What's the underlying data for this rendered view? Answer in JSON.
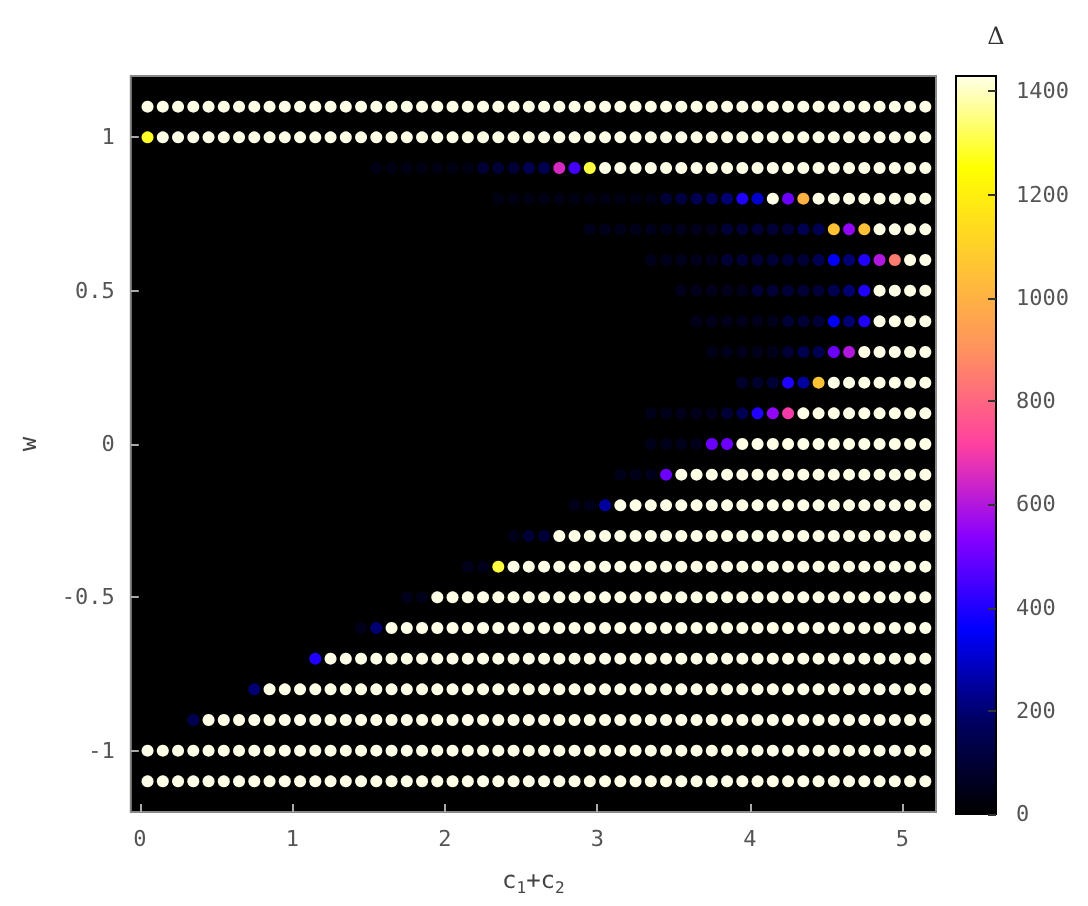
{
  "chart_data": {
    "type": "scatter",
    "xlabel": "c$_{1}$+c$_{2}$",
    "ylabel": "w",
    "clabel": "Δ",
    "xlim": [
      -0.06,
      5.22
    ],
    "ylim": [
      -1.2,
      1.2
    ],
    "xticks": [
      0,
      1,
      2,
      3,
      4,
      5
    ],
    "yticks": [
      -1,
      -0.5,
      0,
      0.5,
      1
    ],
    "clim": [
      0,
      1430
    ],
    "cticks": [
      0,
      200,
      400,
      600,
      800,
      1000,
      1200,
      1400
    ],
    "marker": "circle",
    "grid": false,
    "x": [
      0.05,
      0.15,
      0.25,
      0.35,
      0.45,
      0.55,
      0.65,
      0.75,
      0.85,
      0.95,
      1.05,
      1.15,
      1.25,
      1.35,
      1.45,
      1.55,
      1.65,
      1.75,
      1.85,
      1.95,
      2.05,
      2.15,
      2.25,
      2.35,
      2.45,
      2.55,
      2.65,
      2.75,
      2.85,
      2.95,
      3.05,
      3.15,
      3.25,
      3.35,
      3.45,
      3.55,
      3.65,
      3.75,
      3.85,
      3.95,
      4.05,
      4.15,
      4.25,
      4.35,
      4.45,
      4.55,
      4.65,
      4.75,
      4.85,
      4.95,
      5.05,
      5.15,
      0.05,
      0.15,
      0.25,
      0.35,
      0.45,
      0.55,
      0.65,
      0.75,
      0.85,
      0.95,
      1.05,
      1.15,
      1.25,
      1.35,
      1.45,
      1.55,
      1.65,
      1.75,
      1.85,
      1.95,
      2.05,
      2.15,
      2.25,
      2.35,
      2.45,
      2.55,
      2.65,
      2.75,
      2.85,
      2.95,
      3.05,
      3.15,
      3.25,
      3.35,
      3.45,
      3.55,
      3.65,
      3.75,
      3.85,
      3.95,
      4.05,
      4.15,
      4.25,
      4.35,
      4.45,
      4.55,
      4.65,
      4.75,
      4.85,
      4.95,
      5.05,
      5.15,
      1.55,
      1.65,
      1.75,
      1.85,
      1.95,
      2.05,
      2.15,
      2.25,
      2.35,
      2.45,
      2.55,
      2.65,
      2.75,
      2.85,
      2.95,
      3.05,
      3.15,
      3.25,
      3.35,
      3.45,
      3.55,
      3.65,
      3.75,
      3.85,
      3.95,
      4.05,
      4.15,
      4.25,
      4.35,
      4.45,
      4.55,
      4.65,
      4.75,
      4.85,
      4.95,
      5.05,
      5.15,
      2.35,
      2.45,
      2.55,
      2.65,
      2.75,
      2.85,
      2.95,
      3.05,
      3.15,
      3.25,
      3.35,
      3.45,
      3.55,
      3.65,
      3.75,
      3.85,
      3.95,
      4.05,
      4.15,
      4.25,
      4.35,
      4.45,
      4.55,
      4.65,
      4.75,
      4.85,
      4.95,
      5.05,
      5.15,
      2.95,
      3.05,
      3.15,
      3.25,
      3.35,
      3.45,
      3.55,
      3.65,
      3.75,
      3.85,
      3.95,
      4.05,
      4.15,
      4.25,
      4.35,
      4.45,
      4.55,
      4.65,
      4.75,
      4.85,
      4.95,
      5.05,
      5.15,
      3.35,
      3.45,
      3.55,
      3.65,
      3.75,
      3.85,
      3.95,
      4.05,
      4.15,
      4.25,
      4.35,
      4.45,
      4.55,
      4.65,
      4.75,
      4.85,
      4.95,
      5.05,
      5.15,
      3.55,
      3.65,
      3.75,
      3.85,
      3.95,
      4.05,
      4.15,
      4.25,
      4.35,
      4.45,
      4.55,
      4.65,
      4.75,
      4.85,
      4.95,
      5.05,
      5.15,
      3.65,
      3.75,
      3.85,
      3.95,
      4.05,
      4.15,
      4.25,
      4.35,
      4.45,
      4.55,
      4.65,
      4.75,
      4.85,
      4.95,
      5.05,
      5.15,
      3.75,
      3.85,
      3.95,
      4.05,
      4.15,
      4.25,
      4.35,
      4.45,
      4.55,
      4.65,
      4.75,
      4.85,
      4.95,
      5.05,
      5.15,
      3.95,
      4.05,
      4.15,
      4.25,
      4.35,
      4.45,
      4.55,
      4.65,
      4.75,
      4.85,
      4.95,
      5.05,
      5.15,
      3.35,
      3.45,
      3.55,
      3.65,
      3.75,
      3.85,
      3.95,
      4.05,
      4.15,
      4.25,
      4.35,
      4.45,
      4.55,
      4.65,
      4.75,
      4.85,
      4.95,
      5.05,
      5.15,
      3.35,
      3.45,
      3.55,
      3.65,
      3.75,
      3.85,
      3.95,
      4.05,
      4.15,
      4.25,
      4.35,
      4.45,
      4.55,
      4.65,
      4.75,
      4.85,
      4.95,
      5.05,
      5.15,
      3.15,
      3.25,
      3.35,
      3.45,
      3.55,
      3.65,
      3.75,
      3.85,
      3.95,
      4.05,
      4.15,
      4.25,
      4.35,
      4.45,
      4.55,
      4.65,
      4.75,
      4.85,
      4.95,
      5.05,
      5.15,
      2.85,
      2.95,
      3.05,
      3.15,
      3.25,
      3.35,
      3.45,
      3.55,
      3.65,
      3.75,
      3.85,
      3.95,
      4.05,
      4.15,
      4.25,
      4.35,
      4.45,
      4.55,
      4.65,
      4.75,
      4.85,
      4.95,
      5.05,
      5.15,
      2.45,
      2.55,
      2.65,
      2.75,
      2.85,
      2.95,
      3.05,
      3.15,
      3.25,
      3.35,
      3.45,
      3.55,
      3.65,
      3.75,
      3.85,
      3.95,
      4.05,
      4.15,
      4.25,
      4.35,
      4.45,
      4.55,
      4.65,
      4.75,
      4.85,
      4.95,
      5.05,
      5.15,
      2.15,
      2.25,
      2.35,
      2.45,
      2.55,
      2.65,
      2.75,
      2.85,
      2.95,
      3.05,
      3.15,
      3.25,
      3.35,
      3.45,
      3.55,
      3.65,
      3.75,
      3.85,
      3.95,
      4.05,
      4.15,
      4.25,
      4.35,
      4.45,
      4.55,
      4.65,
      4.75,
      4.85,
      4.95,
      5.05,
      5.15,
      1.75,
      1.85,
      1.95,
      2.05,
      2.15,
      2.25,
      2.35,
      2.45,
      2.55,
      2.65,
      2.75,
      2.85,
      2.95,
      3.05,
      3.15,
      3.25,
      3.35,
      3.45,
      3.55,
      3.65,
      3.75,
      3.85,
      3.95,
      4.05,
      4.15,
      4.25,
      4.35,
      4.45,
      4.55,
      4.65,
      4.75,
      4.85,
      4.95,
      5.05,
      5.15,
      1.45,
      1.55,
      1.65,
      1.75,
      1.85,
      1.95,
      2.05,
      2.15,
      2.25,
      2.35,
      2.45,
      2.55,
      2.65,
      2.75,
      2.85,
      2.95,
      3.05,
      3.15,
      3.25,
      3.35,
      3.45,
      3.55,
      3.65,
      3.75,
      3.85,
      3.95,
      4.05,
      4.15,
      4.25,
      4.35,
      4.45,
      4.55,
      4.65,
      4.75,
      4.85,
      4.95,
      5.05,
      5.15,
      1.15,
      1.25,
      1.35,
      1.45,
      1.55,
      1.65,
      1.75,
      1.85,
      1.95,
      2.05,
      2.15,
      2.25,
      2.35,
      2.45,
      2.55,
      2.65,
      2.75,
      2.85,
      2.95,
      3.05,
      3.15,
      3.25,
      3.35,
      3.45,
      3.55,
      3.65,
      3.75,
      3.85,
      3.95,
      4.05,
      4.15,
      4.25,
      4.35,
      4.45,
      4.55,
      4.65,
      4.75,
      4.85,
      4.95,
      5.05,
      5.15,
      0.75,
      0.85,
      0.95,
      1.05,
      1.15,
      1.25,
      1.35,
      1.45,
      1.55,
      1.65,
      1.75,
      1.85,
      1.95,
      2.05,
      2.15,
      2.25,
      2.35,
      2.45,
      2.55,
      2.65,
      2.75,
      2.85,
      2.95,
      3.05,
      3.15,
      3.25,
      3.35,
      3.45,
      3.55,
      3.65,
      3.75,
      3.85,
      3.95,
      4.05,
      4.15,
      4.25,
      4.35,
      4.45,
      4.55,
      4.65,
      4.75,
      4.85,
      4.95,
      5.05,
      5.15,
      0.35,
      0.45,
      0.55,
      0.65,
      0.75,
      0.85,
      0.95,
      1.05,
      1.15,
      1.25,
      1.35,
      1.45,
      1.55,
      1.65,
      1.75,
      1.85,
      1.95,
      2.05,
      2.15,
      2.25,
      2.35,
      2.45,
      2.55,
      2.65,
      2.75,
      2.85,
      2.95,
      3.05,
      3.15,
      3.25,
      3.35,
      3.45,
      3.55,
      3.65,
      3.75,
      3.85,
      3.95,
      4.05,
      4.15,
      4.25,
      4.35,
      4.45,
      4.55,
      4.65,
      4.75,
      4.85,
      4.95,
      5.05,
      5.15,
      0.05,
      0.15,
      0.25,
      0.35,
      0.45,
      0.55,
      0.65,
      0.75,
      0.85,
      0.95,
      1.05,
      1.15,
      1.25,
      1.35,
      1.45,
      1.55,
      1.65,
      1.75,
      1.85,
      1.95,
      2.05,
      2.15,
      2.25,
      2.35,
      2.45,
      2.55,
      2.65,
      2.75,
      2.85,
      2.95,
      3.05,
      3.15,
      3.25,
      3.35,
      3.45,
      3.55,
      3.65,
      3.75,
      3.85,
      3.95,
      4.05,
      4.15,
      4.25,
      4.35,
      4.45,
      4.55,
      4.65,
      4.75,
      4.85,
      4.95,
      5.05,
      5.15,
      0.05,
      0.15,
      0.25,
      0.35,
      0.45,
      0.55,
      0.65,
      0.75,
      0.85,
      0.95,
      1.05,
      1.15,
      1.25,
      1.35,
      1.45,
      1.55,
      1.65,
      1.75,
      1.85,
      1.95,
      2.05,
      2.15,
      2.25,
      2.35,
      2.45,
      2.55,
      2.65,
      2.75,
      2.85,
      2.95,
      3.05,
      3.15,
      3.25,
      3.35,
      3.45,
      3.55,
      3.65,
      3.75,
      3.85,
      3.95,
      4.05,
      4.15,
      4.25,
      4.35,
      4.45,
      4.55,
      4.65,
      4.75,
      4.85,
      4.95,
      5.05,
      5.15
    ],
    "values": [
      1.1,
      1.1,
      1.1,
      1.1,
      1.1,
      1.1,
      1.1,
      1.1,
      1.1,
      1.1,
      1.1,
      1.1,
      1.1,
      1.1,
      1.1,
      1.1,
      1.1,
      1.1,
      1.1,
      1.1,
      1.1,
      1.1,
      1.1,
      1.1,
      1.1,
      1.1,
      1.1,
      1.1,
      1.1,
      1.1,
      1.1,
      1.1,
      1.1,
      1.1,
      1.1,
      1.1,
      1.1,
      1.1,
      1.1,
      1.1,
      1.1,
      1.1,
      1.1,
      1.1,
      1.1,
      1.1,
      1.1,
      1.1,
      1.1,
      1.1,
      1.1,
      1.1,
      1,
      1,
      1,
      1,
      1,
      1,
      1,
      1,
      1,
      1,
      1,
      1,
      1,
      1,
      1,
      1,
      1,
      1,
      1,
      1,
      1,
      1,
      1,
      1,
      1,
      1,
      1,
      1,
      1,
      1,
      1,
      1,
      1,
      1,
      1,
      1,
      1,
      1,
      1,
      1,
      1,
      1,
      1,
      1,
      1,
      1,
      1,
      1,
      1,
      1,
      1,
      1,
      0.9,
      0.9,
      0.9,
      0.9,
      0.9,
      0.9,
      0.9,
      0.9,
      0.9,
      0.9,
      0.9,
      0.9,
      0.9,
      0.9,
      0.9,
      0.9,
      0.9,
      0.9,
      0.9,
      0.9,
      0.9,
      0.9,
      0.9,
      0.9,
      0.9,
      0.9,
      0.9,
      0.9,
      0.9,
      0.9,
      0.9,
      0.9,
      0.9,
      0.9,
      0.9,
      0.9,
      0.9,
      0.8,
      0.8,
      0.8,
      0.8,
      0.8,
      0.8,
      0.8,
      0.8,
      0.8,
      0.8,
      0.8,
      0.8,
      0.8,
      0.8,
      0.8,
      0.8,
      0.8,
      0.8,
      0.8,
      0.8,
      0.8,
      0.8,
      0.8,
      0.8,
      0.8,
      0.8,
      0.8,
      0.8,
      0.8,
      0.7,
      0.7,
      0.7,
      0.7,
      0.7,
      0.7,
      0.7,
      0.7,
      0.7,
      0.7,
      0.7,
      0.7,
      0.7,
      0.7,
      0.7,
      0.7,
      0.7,
      0.7,
      0.7,
      0.7,
      0.7,
      0.7,
      0.7,
      0.6,
      0.6,
      0.6,
      0.6,
      0.6,
      0.6,
      0.6,
      0.6,
      0.6,
      0.6,
      0.6,
      0.6,
      0.6,
      0.6,
      0.6,
      0.6,
      0.6,
      0.6,
      0.6,
      0.5,
      0.5,
      0.5,
      0.5,
      0.5,
      0.5,
      0.5,
      0.5,
      0.5,
      0.5,
      0.5,
      0.5,
      0.5,
      0.5,
      0.5,
      0.5,
      0.5,
      0.4,
      0.4,
      0.4,
      0.4,
      0.4,
      0.4,
      0.4,
      0.4,
      0.4,
      0.4,
      0.4,
      0.4,
      0.4,
      0.4,
      0.4,
      0.4,
      0.3,
      0.3,
      0.3,
      0.3,
      0.3,
      0.3,
      0.3,
      0.3,
      0.3,
      0.3,
      0.3,
      0.3,
      0.3,
      0.3,
      0.3,
      0.2,
      0.2,
      0.2,
      0.2,
      0.2,
      0.2,
      0.2,
      0.2,
      0.2,
      0.2,
      0.2,
      0.2,
      0.2,
      0.1,
      0.1,
      0.1,
      0.1,
      0.1,
      0.1,
      0.1,
      0.1,
      0.1,
      0.1,
      0.1,
      0.1,
      0.1,
      0.1,
      0.1,
      0.1,
      0.1,
      0.1,
      0.1,
      0,
      0,
      0,
      0,
      0,
      0,
      0,
      0,
      0,
      0,
      0,
      0,
      0,
      0,
      0,
      0,
      0,
      0,
      0,
      -0.1,
      -0.1,
      -0.1,
      -0.1,
      -0.1,
      -0.1,
      -0.1,
      -0.1,
      -0.1,
      -0.1,
      -0.1,
      -0.1,
      -0.1,
      -0.1,
      -0.1,
      -0.1,
      -0.1,
      -0.1,
      -0.1,
      -0.1,
      -0.1,
      -0.2,
      -0.2,
      -0.2,
      -0.2,
      -0.2,
      -0.2,
      -0.2,
      -0.2,
      -0.2,
      -0.2,
      -0.2,
      -0.2,
      -0.2,
      -0.2,
      -0.2,
      -0.2,
      -0.2,
      -0.2,
      -0.2,
      -0.2,
      -0.2,
      -0.2,
      -0.2,
      -0.2,
      -0.3,
      -0.3,
      -0.3,
      -0.3,
      -0.3,
      -0.3,
      -0.3,
      -0.3,
      -0.3,
      -0.3,
      -0.3,
      -0.3,
      -0.3,
      -0.3,
      -0.3,
      -0.3,
      -0.3,
      -0.3,
      -0.3,
      -0.3,
      -0.3,
      -0.3,
      -0.3,
      -0.3,
      -0.3,
      -0.3,
      -0.3,
      -0.3,
      -0.4,
      -0.4,
      -0.4,
      -0.4,
      -0.4,
      -0.4,
      -0.4,
      -0.4,
      -0.4,
      -0.4,
      -0.4,
      -0.4,
      -0.4,
      -0.4,
      -0.4,
      -0.4,
      -0.4,
      -0.4,
      -0.4,
      -0.4,
      -0.4,
      -0.4,
      -0.4,
      -0.4,
      -0.4,
      -0.4,
      -0.4,
      -0.4,
      -0.4,
      -0.4,
      -0.4,
      -0.5,
      -0.5,
      -0.5,
      -0.5,
      -0.5,
      -0.5,
      -0.5,
      -0.5,
      -0.5,
      -0.5,
      -0.5,
      -0.5,
      -0.5,
      -0.5,
      -0.5,
      -0.5,
      -0.5,
      -0.5,
      -0.5,
      -0.5,
      -0.5,
      -0.5,
      -0.5,
      -0.5,
      -0.5,
      -0.5,
      -0.5,
      -0.5,
      -0.5,
      -0.5,
      -0.5,
      -0.5,
      -0.5,
      -0.5,
      -0.5,
      -0.6,
      -0.6,
      -0.6,
      -0.6,
      -0.6,
      -0.6,
      -0.6,
      -0.6,
      -0.6,
      -0.6,
      -0.6,
      -0.6,
      -0.6,
      -0.6,
      -0.6,
      -0.6,
      -0.6,
      -0.6,
      -0.6,
      -0.6,
      -0.6,
      -0.6,
      -0.6,
      -0.6,
      -0.6,
      -0.6,
      -0.6,
      -0.6,
      -0.6,
      -0.6,
      -0.6,
      -0.6,
      -0.6,
      -0.6,
      -0.6,
      -0.6,
      -0.6,
      -0.6,
      -0.7,
      -0.7,
      -0.7,
      -0.7,
      -0.7,
      -0.7,
      -0.7,
      -0.7,
      -0.7,
      -0.7,
      -0.7,
      -0.7,
      -0.7,
      -0.7,
      -0.7,
      -0.7,
      -0.7,
      -0.7,
      -0.7,
      -0.7,
      -0.7,
      -0.7,
      -0.7,
      -0.7,
      -0.7,
      -0.7,
      -0.7,
      -0.7,
      -0.7,
      -0.7,
      -0.7,
      -0.7,
      -0.7,
      -0.7,
      -0.7,
      -0.7,
      -0.7,
      -0.7,
      -0.7,
      -0.7,
      -0.7,
      -0.8,
      -0.8,
      -0.8,
      -0.8,
      -0.8,
      -0.8,
      -0.8,
      -0.8,
      -0.8,
      -0.8,
      -0.8,
      -0.8,
      -0.8,
      -0.8,
      -0.8,
      -0.8,
      -0.8,
      -0.8,
      -0.8,
      -0.8,
      -0.8,
      -0.8,
      -0.8,
      -0.8,
      -0.8,
      -0.8,
      -0.8,
      -0.8,
      -0.8,
      -0.8,
      -0.8,
      -0.8,
      -0.8,
      -0.8,
      -0.8,
      -0.8,
      -0.8,
      -0.8,
      -0.8,
      -0.8,
      -0.8,
      -0.8,
      -0.8,
      -0.8,
      -0.8,
      -0.9,
      -0.9,
      -0.9,
      -0.9,
      -0.9,
      -0.9,
      -0.9,
      -0.9,
      -0.9,
      -0.9,
      -0.9,
      -0.9,
      -0.9,
      -0.9,
      -0.9,
      -0.9,
      -0.9,
      -0.9,
      -0.9,
      -0.9,
      -0.9,
      -0.9,
      -0.9,
      -0.9,
      -0.9,
      -0.9,
      -0.9,
      -0.9,
      -0.9,
      -0.9,
      -0.9,
      -0.9,
      -0.9,
      -0.9,
      -0.9,
      -0.9,
      -0.9,
      -0.9,
      -0.9,
      -0.9,
      -0.9,
      -0.9,
      -0.9,
      -0.9,
      -0.9,
      -0.9,
      -0.9,
      -0.9,
      -0.9,
      -1,
      -1,
      -1,
      -1,
      -1,
      -1,
      -1,
      -1,
      -1,
      -1,
      -1,
      -1,
      -1,
      -1,
      -1,
      -1,
      -1,
      -1,
      -1,
      -1,
      -1,
      -1,
      -1,
      -1,
      -1,
      -1,
      -1,
      -1,
      -1,
      -1,
      -1,
      -1,
      -1,
      -1,
      -1,
      -1,
      -1,
      -1,
      -1,
      -1,
      -1,
      -1,
      -1,
      -1,
      -1,
      -1,
      -1,
      -1,
      -1,
      -1,
      -1,
      -1,
      -1.1,
      -1.1,
      -1.1,
      -1.1,
      -1.1,
      -1.1,
      -1.1,
      -1.1,
      -1.1,
      -1.1,
      -1.1,
      -1.1,
      -1.1,
      -1.1,
      -1.1,
      -1.1,
      -1.1,
      -1.1,
      -1.1,
      -1.1,
      -1.1,
      -1.1,
      -1.1,
      -1.1,
      -1.1,
      -1.1,
      -1.1,
      -1.1,
      -1.1,
      -1.1,
      -1.1,
      -1.1,
      -1.1,
      -1.1,
      -1.1,
      -1.1,
      -1.1,
      -1.1,
      -1.1,
      -1.1,
      -1.1,
      -1.1,
      -1.1,
      -1.1,
      -1.1,
      -1.1,
      -1.1,
      -1.1,
      -1.1,
      -1.1,
      -1.1,
      -1.1
    ],
    "cvalues": [
      1430,
      1430,
      1430,
      1430,
      1430,
      1430,
      1430,
      1430,
      1430,
      1430,
      1430,
      1430,
      1430,
      1430,
      1430,
      1430,
      1430,
      1430,
      1430,
      1430,
      1430,
      1430,
      1430,
      1430,
      1430,
      1430,
      1430,
      1430,
      1430,
      1430,
      1430,
      1430,
      1430,
      1430,
      1430,
      1430,
      1430,
      1430,
      1430,
      1430,
      1430,
      1430,
      1430,
      1430,
      1430,
      1430,
      1430,
      1430,
      1430,
      1430,
      1430,
      1430,
      1280,
      1430,
      1430,
      1430,
      1430,
      1430,
      1430,
      1430,
      1430,
      1430,
      1430,
      1430,
      1430,
      1430,
      1430,
      1430,
      1430,
      1430,
      1430,
      1430,
      1430,
      1430,
      1430,
      1430,
      1430,
      1430,
      1430,
      1430,
      1430,
      1430,
      1430,
      1430,
      1430,
      1430,
      1430,
      1430,
      1430,
      1430,
      1430,
      1430,
      1430,
      1430,
      1430,
      1430,
      1430,
      1430,
      1430,
      1430,
      1430,
      1430,
      1430,
      1430,
      40,
      40,
      40,
      40,
      40,
      40,
      40,
      100,
      100,
      100,
      150,
      150,
      650,
      450,
      1300,
      1430,
      1430,
      1430,
      1430,
      1430,
      1430,
      1430,
      1430,
      1430,
      1430,
      1430,
      1430,
      1430,
      1430,
      1430,
      1430,
      1430,
      1430,
      1430,
      1430,
      1430,
      1430,
      40,
      40,
      40,
      40,
      40,
      40,
      40,
      40,
      40,
      40,
      40,
      100,
      120,
      150,
      150,
      200,
      400,
      300,
      1430,
      500,
      1000,
      1430,
      1430,
      1430,
      1430,
      1430,
      1430,
      1430,
      1430,
      50,
      50,
      50,
      50,
      50,
      50,
      50,
      50,
      50,
      100,
      100,
      100,
      100,
      100,
      150,
      150,
      1050,
      550,
      1050,
      1430,
      1430,
      1430,
      1430,
      50,
      50,
      50,
      50,
      50,
      100,
      100,
      100,
      100,
      100,
      100,
      150,
      350,
      200,
      400,
      600,
      850,
      1430,
      1430,
      50,
      50,
      50,
      50,
      50,
      100,
      100,
      100,
      100,
      100,
      150,
      200,
      400,
      1430,
      1430,
      1430,
      1430,
      50,
      50,
      50,
      50,
      50,
      50,
      100,
      100,
      100,
      350,
      200,
      400,
      1430,
      1430,
      1430,
      1430,
      50,
      50,
      50,
      50,
      50,
      100,
      150,
      150,
      500,
      600,
      1430,
      1430,
      1430,
      1430,
      1430,
      80,
      80,
      100,
      400,
      250,
      1050,
      1430,
      1430,
      1430,
      1430,
      1430,
      1430,
      1430,
      50,
      50,
      50,
      50,
      50,
      100,
      150,
      400,
      550,
      700,
      1430,
      1430,
      1430,
      1430,
      1430,
      1430,
      1430,
      1430,
      1430,
      50,
      50,
      50,
      50,
      500,
      500,
      1430,
      1430,
      1430,
      1430,
      1430,
      1430,
      1430,
      1430,
      1430,
      1430,
      1430,
      1430,
      1430,
      50,
      50,
      50,
      500,
      1430,
      1430,
      1430,
      1430,
      1430,
      1430,
      1430,
      1430,
      1430,
      1430,
      1430,
      1430,
      1430,
      1430,
      1430,
      1430,
      1430,
      50,
      50,
      250,
      1430,
      1430,
      1430,
      1430,
      1430,
      1430,
      1430,
      1430,
      1430,
      1430,
      1430,
      1430,
      1430,
      1430,
      1430,
      1430,
      1430,
      1430,
      1430,
      1430,
      1430,
      50,
      100,
      100,
      1430,
      1430,
      1430,
      1430,
      1430,
      1430,
      1430,
      1430,
      1430,
      1430,
      1430,
      1430,
      1430,
      1430,
      1430,
      1430,
      1430,
      1430,
      1430,
      1430,
      1430,
      1430,
      1430,
      1430,
      1430,
      50,
      50,
      1300,
      1430,
      1430,
      1430,
      1430,
      1430,
      1430,
      1430,
      1430,
      1430,
      1430,
      1430,
      1430,
      1430,
      1430,
      1430,
      1430,
      1430,
      1430,
      1430,
      1430,
      1430,
      1430,
      1430,
      1430,
      1430,
      1430,
      1430,
      1430,
      50,
      50,
      1430,
      1430,
      1430,
      1430,
      1430,
      1430,
      1430,
      1430,
      1430,
      1430,
      1430,
      1430,
      1430,
      1430,
      1430,
      1430,
      1430,
      1430,
      1430,
      1430,
      1430,
      1430,
      1430,
      1430,
      1430,
      1430,
      1430,
      1430,
      1430,
      1430,
      1430,
      1430,
      1430,
      50,
      200,
      1430,
      1430,
      1430,
      1430,
      1430,
      1430,
      1430,
      1430,
      1430,
      1430,
      1430,
      1430,
      1430,
      1430,
      1430,
      1430,
      1430,
      1430,
      1430,
      1430,
      1430,
      1430,
      1430,
      1430,
      1430,
      1430,
      1430,
      1430,
      1430,
      1430,
      1430,
      1430,
      1430,
      1430,
      1430,
      1430,
      400,
      1430,
      1430,
      1430,
      1430,
      1430,
      1430,
      1430,
      1430,
      1430,
      1430,
      1430,
      1430,
      1430,
      1430,
      1430,
      1430,
      1430,
      1430,
      1430,
      1430,
      1430,
      1430,
      1430,
      1430,
      1430,
      1430,
      1430,
      1430,
      1430,
      1430,
      1430,
      1430,
      1430,
      1430,
      1430,
      1430,
      1430,
      1430,
      1430,
      1430,
      200,
      1430,
      1430,
      1430,
      1430,
      1430,
      1430,
      1430,
      1430,
      1430,
      1430,
      1430,
      1430,
      1430,
      1430,
      1430,
      1430,
      1430,
      1430,
      1430,
      1430,
      1430,
      1430,
      1430,
      1430,
      1430,
      1430,
      1430,
      1430,
      1430,
      1430,
      1430,
      1430,
      1430,
      1430,
      1430,
      1430,
      1430,
      1430,
      1430,
      1430,
      1430,
      1430,
      1430,
      1430,
      150,
      1430,
      1430,
      1430,
      1430,
      1430,
      1430,
      1430,
      1430,
      1430,
      1430,
      1430,
      1430,
      1430,
      1430,
      1430,
      1430,
      1430,
      1430,
      1430,
      1430,
      1430,
      1430,
      1430,
      1430,
      1430,
      1430,
      1430,
      1430,
      1430,
      1430,
      1430,
      1430,
      1430,
      1430,
      1430,
      1430,
      1430,
      1430,
      1430,
      1430,
      1430,
      1430,
      1430,
      1430,
      1430,
      1430,
      1430,
      1430,
      1430,
      1430,
      1430,
      1430,
      1430,
      1430,
      1430,
      1430,
      1430,
      1430,
      1430,
      1430,
      1430,
      1430,
      1430,
      1430,
      1430,
      1430,
      1430,
      1430,
      1430,
      1430,
      1430,
      1430,
      1430,
      1430,
      1430,
      1430,
      1430,
      1430,
      1430,
      1430,
      1430,
      1430,
      1430,
      1430,
      1430,
      1430,
      1430,
      1430,
      1430,
      1430,
      1430,
      1430,
      1430,
      1430,
      1430,
      1430,
      1430,
      1430,
      1430,
      1430,
      1430,
      1430,
      1430,
      1430,
      1430,
      1430,
      1430,
      1430,
      1430,
      1430,
      1430,
      1430,
      1430,
      1430,
      1430,
      1430,
      1430,
      1430,
      1430,
      1430,
      1430,
      1430,
      1430,
      1430,
      1430,
      1430,
      1430,
      1430,
      1430,
      1430,
      1430,
      1430,
      1430,
      1430,
      1430,
      1430,
      1430,
      1430,
      1430,
      1430,
      1430,
      1430,
      1430,
      1430,
      1430,
      1430,
      1430,
      1430,
      1430,
      1430,
      1430,
      1430
    ]
  }
}
